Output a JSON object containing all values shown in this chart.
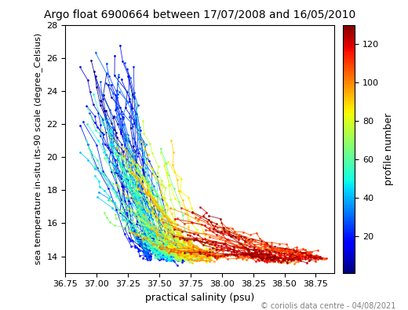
{
  "title": "Argo float 6900664 between 17/07/2008 and 16/05/2010",
  "xlabel": "practical salinity (psu)",
  "ylabel": "sea temperature in-situ its-90 scale (degree_Celsius)",
  "colorbar_label": "profile number",
  "xlim": [
    36.75,
    38.9
  ],
  "ylim": [
    13.0,
    28.0
  ],
  "yticks": [
    14,
    16,
    18,
    20,
    22,
    24,
    26,
    28
  ],
  "xticks": [
    36.75,
    37.0,
    37.25,
    37.5,
    37.75,
    38.0,
    38.25,
    38.5,
    38.75
  ],
  "colorbar_ticks": [
    20,
    40,
    60,
    80,
    100,
    120
  ],
  "n_profiles": 130,
  "cmap_vmin": 1,
  "cmap_vmax": 130,
  "copyright": "© coriolis data centre - 04/08/2021",
  "seed": 42
}
